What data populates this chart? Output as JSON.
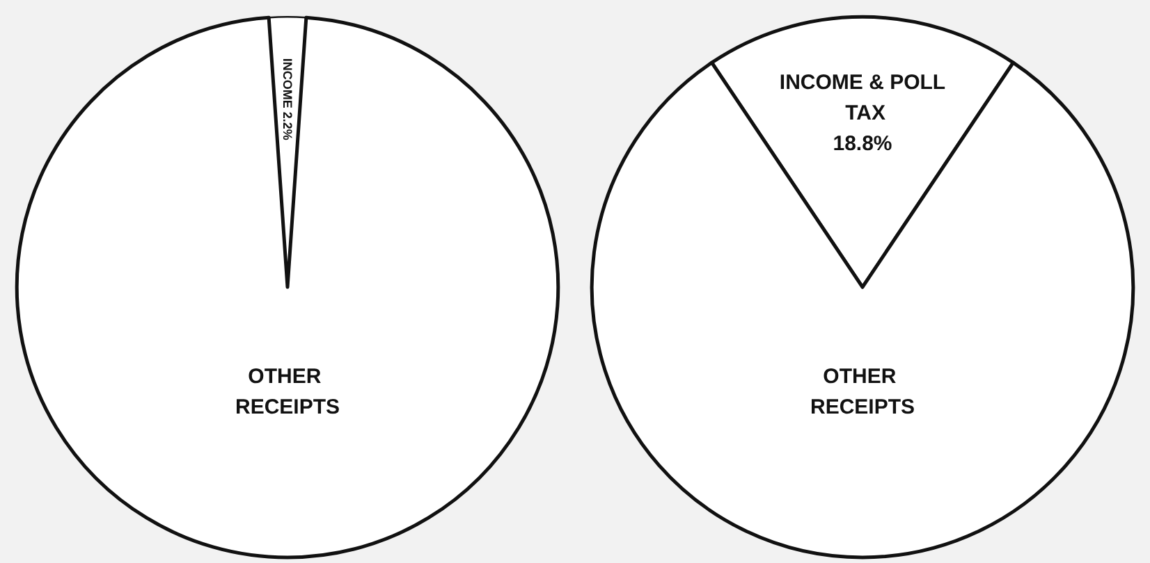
{
  "chart_data": [
    {
      "type": "pie",
      "categories": [
        "INCOME",
        "OTHER RECEIPTS"
      ],
      "values": [
        2.2,
        97.8
      ],
      "value_labels": [
        "2.2%",
        null
      ],
      "colors": [
        "#ffffff",
        "#ffffff"
      ],
      "legend": false
    },
    {
      "type": "pie",
      "categories": [
        "INCOME & POLL TAX",
        "OTHER RECEIPTS"
      ],
      "values": [
        18.8,
        81.2
      ],
      "value_labels": [
        "18.8%",
        null
      ],
      "colors": [
        "#ffffff",
        "#ffffff"
      ],
      "legend": false
    }
  ]
}
